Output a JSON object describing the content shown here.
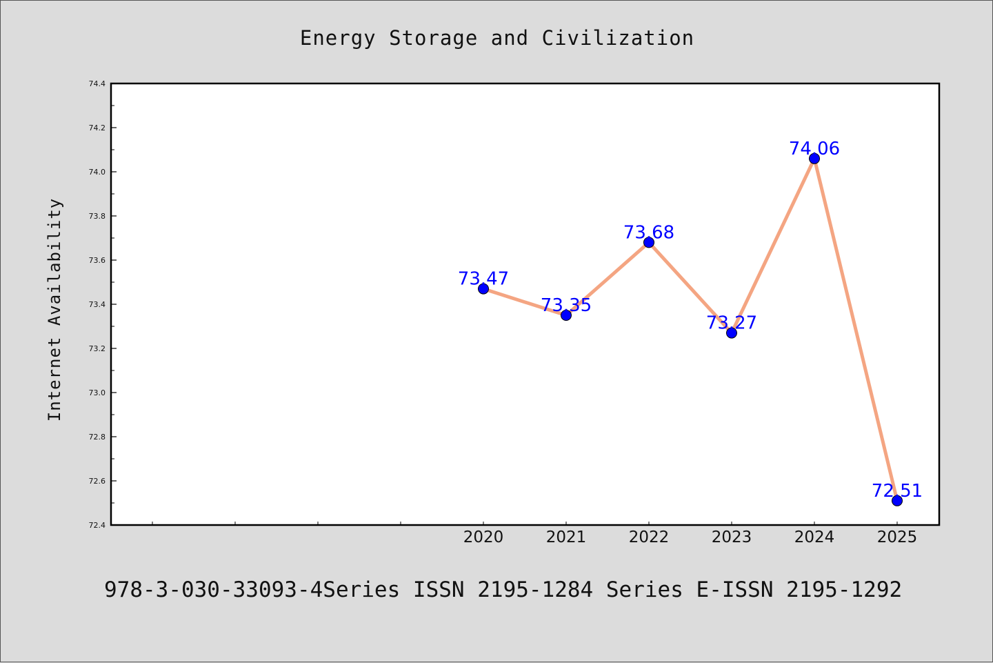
{
  "chart_data": {
    "type": "line",
    "title": "Energy Storage and Civilization",
    "xlabel": "",
    "ylabel": "Internet Availability",
    "x": [
      "2020",
      "2021",
      "2022",
      "2023",
      "2024",
      "2025"
    ],
    "values": [
      73.47,
      73.35,
      73.68,
      73.27,
      74.06,
      72.51
    ],
    "data_labels": [
      "73.47",
      "73.35",
      "73.68",
      "73.27",
      "74.06",
      "72.51"
    ],
    "ylim": [
      72.4,
      74.4
    ],
    "yticks": [
      "72.4",
      "72.6",
      "72.8",
      "73.0",
      "73.2",
      "73.4",
      "73.6",
      "73.8",
      "74.0",
      "74.2",
      "74.4"
    ],
    "grid": false,
    "legend": "none",
    "line_color": "#f4a582",
    "marker_color": "#0000ff",
    "label_color": "#0000ff"
  },
  "footer": "978-3-030-33093-4Series ISSN 2195-1284 Series E-ISSN 2195-1292"
}
